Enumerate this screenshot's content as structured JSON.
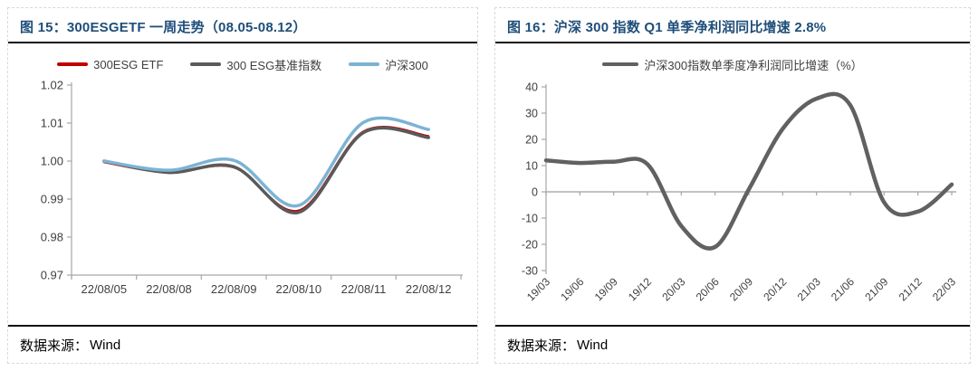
{
  "panels": [
    {
      "title": "图 15：300ESGETF 一周走势（08.05-08.12）",
      "source_label": "数据来源：",
      "source_value": "Wind"
    },
    {
      "title": "图 16：沪深 300 指数 Q1 单季净利润同比增速 2.8%",
      "source_label": "数据来源：",
      "source_value": "Wind"
    }
  ],
  "chart_data": [
    {
      "type": "line",
      "title": "300ESGETF 一周走势（08.05-08.12）",
      "categories": [
        "22/08/05",
        "22/08/08",
        "22/08/09",
        "22/08/10",
        "22/08/11",
        "22/08/12"
      ],
      "series": [
        {
          "name": "300ESG ETF",
          "color": "#C00000",
          "values": [
            0.9997,
            0.9969,
            0.9983,
            0.987,
            1.0078,
            1.0066
          ]
        },
        {
          "name": "300 ESG基准指数",
          "color": "#5A5A5A",
          "values": [
            1.0,
            0.997,
            0.9985,
            0.9865,
            1.0075,
            1.0062
          ]
        },
        {
          "name": "沪深300",
          "color": "#7CB3D4",
          "values": [
            1.0,
            0.9976,
            1.0002,
            0.9883,
            1.0102,
            1.0083
          ]
        }
      ],
      "ylim": [
        0.97,
        1.02
      ],
      "yticks": [
        "1.02",
        "1.01",
        "1.00",
        "0.99",
        "0.98",
        "0.97"
      ],
      "legend_position": "top",
      "grid": false,
      "x_axis_mode": "labels-between-ticks"
    },
    {
      "type": "line",
      "title": "沪深 300 指数 Q1 单季净利润同比增速 2.8%",
      "categories": [
        "19/03",
        "19/06",
        "19/09",
        "19/12",
        "20/03",
        "20/06",
        "20/09",
        "20/12",
        "21/03",
        "21/06",
        "21/09",
        "21/12",
        "22/03"
      ],
      "series": [
        {
          "name": "沪深300指数单季度净利润同比增速（%）",
          "color": "#616161",
          "values": [
            12,
            11,
            11.5,
            10.5,
            -13,
            -21,
            1,
            24,
            35.5,
            33,
            -4,
            -7.5,
            2.8
          ]
        }
      ],
      "ylim": [
        -30,
        40
      ],
      "yticks": [
        "40",
        "30",
        "20",
        "10",
        "0",
        "-10",
        "-20",
        "-30"
      ],
      "legend_position": "top",
      "grid": false,
      "zero_line": true,
      "x_label_rotation": -45
    }
  ]
}
